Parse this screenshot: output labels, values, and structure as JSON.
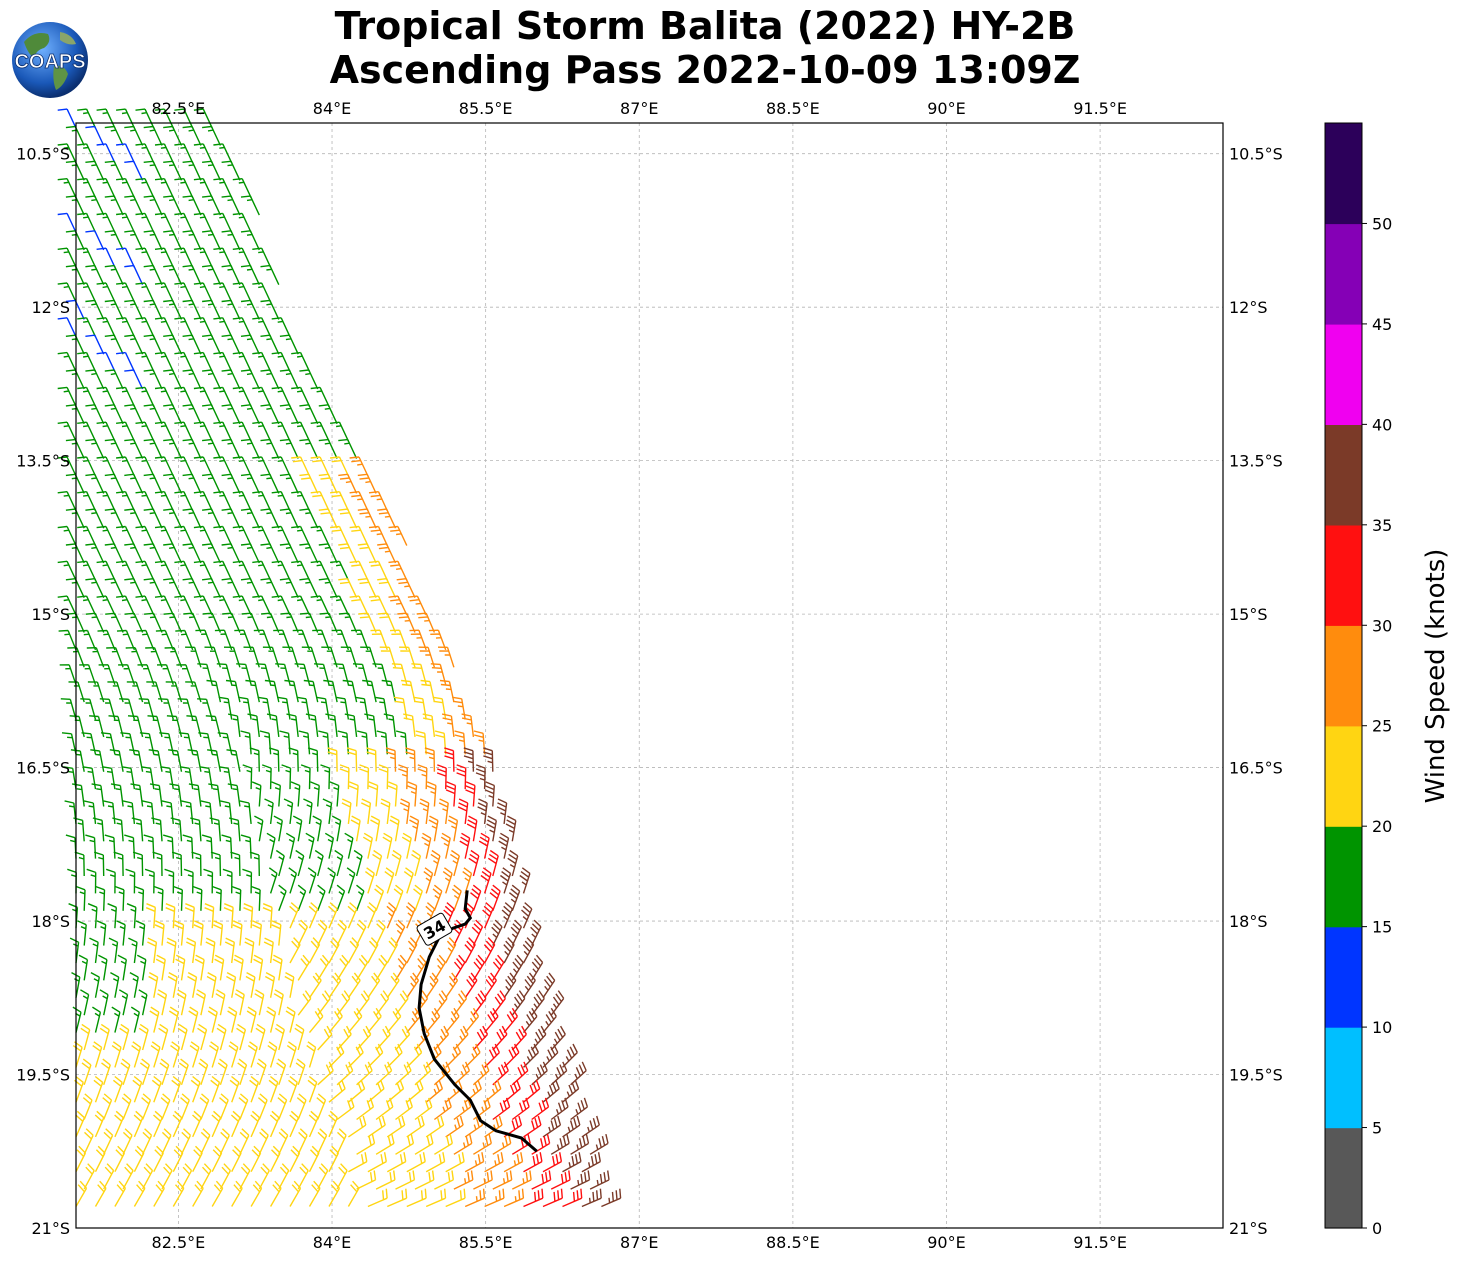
{
  "title": {
    "line1": "Tropical Storm Balita (2022) HY-2B",
    "line2": "Ascending Pass 2022-10-09 13:09Z"
  },
  "logo": {
    "text": "COAPS",
    "icon": "globe-logo-icon"
  },
  "axes": {
    "lon_ticks": [
      "82.5°E",
      "84°E",
      "85.5°E",
      "87°E",
      "88.5°E",
      "90°E",
      "91.5°E"
    ],
    "lat_ticks": [
      "10.5°S",
      "12°S",
      "13.5°S",
      "15°S",
      "16.5°S",
      "18°S",
      "19.5°S",
      "21°S"
    ],
    "lon_range": [
      81.5,
      92.7
    ],
    "lat_range": [
      -10.2,
      -21.0
    ],
    "grid": true
  },
  "colorbar": {
    "label": "Wind Speed (knots)",
    "ticks": [
      "0",
      "5",
      "10",
      "15",
      "20",
      "25",
      "30",
      "35",
      "40",
      "45",
      "50"
    ],
    "bins": [
      {
        "min": 0,
        "max": 5,
        "color": "#585858"
      },
      {
        "min": 5,
        "max": 10,
        "color": "#00bfff"
      },
      {
        "min": 10,
        "max": 15,
        "color": "#0035ff"
      },
      {
        "min": 15,
        "max": 20,
        "color": "#009400"
      },
      {
        "min": 20,
        "max": 25,
        "color": "#ffd512"
      },
      {
        "min": 25,
        "max": 30,
        "color": "#ff8c0d"
      },
      {
        "min": 30,
        "max": 35,
        "color": "#ff1010"
      },
      {
        "min": 35,
        "max": 40,
        "color": "#7b3a28"
      },
      {
        "min": 40,
        "max": 45,
        "color": "#f000f0"
      },
      {
        "min": 45,
        "max": 50,
        "color": "#8500b6"
      },
      {
        "min": 50,
        "max": 55,
        "color": "#2c005a"
      }
    ]
  },
  "contour": {
    "label": "34",
    "points": [
      [
        85.32,
        -17.7
      ],
      [
        85.3,
        -17.88
      ],
      [
        85.35,
        -17.97
      ],
      [
        85.3,
        -18.03
      ],
      [
        85.18,
        -18.07
      ],
      [
        85.05,
        -18.15
      ],
      [
        84.95,
        -18.35
      ],
      [
        84.87,
        -18.62
      ],
      [
        84.85,
        -18.85
      ],
      [
        84.9,
        -19.1
      ],
      [
        85.0,
        -19.35
      ],
      [
        85.2,
        -19.6
      ],
      [
        85.35,
        -19.75
      ],
      [
        85.45,
        -19.95
      ],
      [
        85.6,
        -20.05
      ],
      [
        85.85,
        -20.12
      ],
      [
        86.0,
        -20.25
      ]
    ]
  },
  "chart_data": {
    "type": "wind-barbs",
    "title": "Tropical Storm Balita (2022) HY-2B Ascending Pass 2022-10-09 13:09Z",
    "units": "knots",
    "swath": {
      "west_lon": 81.5,
      "east_edge": [
        [
          -10.2,
          83.0
        ],
        [
          -11.0,
          83.3
        ],
        [
          -12.0,
          83.6
        ],
        [
          -13.5,
          84.4
        ],
        [
          -15.0,
          85.0
        ],
        [
          -16.5,
          85.6
        ],
        [
          -18.0,
          85.95
        ],
        [
          -19.5,
          86.3
        ],
        [
          -21.0,
          86.8
        ]
      ]
    },
    "speed_regions": [
      {
        "speed_kt": 17,
        "color": "#009400",
        "lat_range": [
          -10.2,
          -19.2
        ],
        "where": "western and central swath"
      },
      {
        "speed_kt": 13,
        "color": "#0035ff",
        "lat_range": [
          -11.6,
          -14.0
        ],
        "where": "far west patches"
      },
      {
        "speed_kt": 22,
        "color": "#ffd512",
        "lat_range": [
          -13.6,
          -21.0
        ],
        "where": "eastern edge north of 16°S, southwest sector"
      },
      {
        "speed_kt": 27,
        "color": "#ff8c0d",
        "lat_range": [
          -14.8,
          -21.0
        ],
        "where": "east-central band"
      },
      {
        "speed_kt": 32,
        "color": "#ff1010",
        "lat_range": [
          -16.8,
          -21.0
        ],
        "where": "eastern edge near 85.5-86.5°E"
      },
      {
        "speed_kt": 37,
        "color": "#7b3a28",
        "lat_range": [
          -17.4,
          -20.0
        ],
        "where": "inside 34-kt contour, east edge"
      }
    ],
    "contour_34kt": true
  }
}
